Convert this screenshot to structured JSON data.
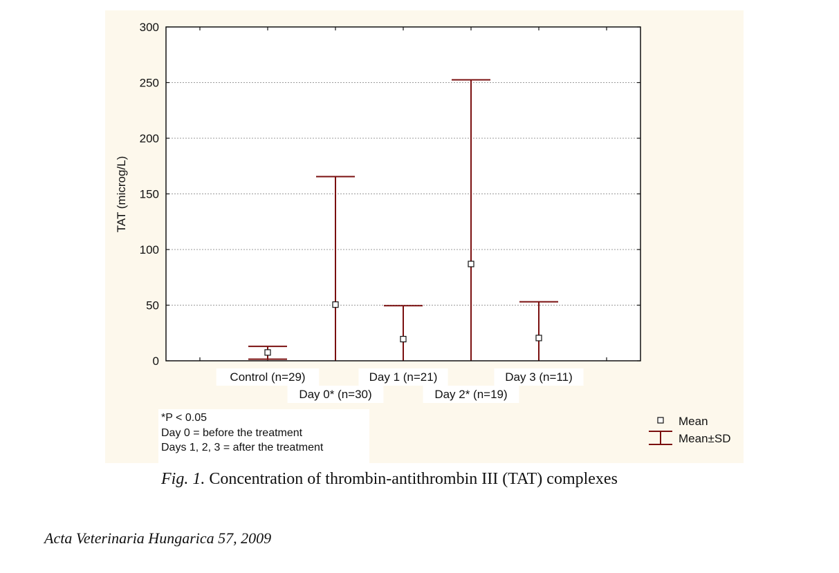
{
  "chart_data": {
    "type": "errorbar",
    "ylabel": "TAT (microg/L)",
    "ylim": [
      0,
      300
    ],
    "yticks": [
      0,
      50,
      100,
      150,
      200,
      250,
      300
    ],
    "grid": true,
    "categories": [
      "Control (n=29)",
      "Day 0* (n=30)",
      "Day 1 (n=21)",
      "Day 2* (n=19)",
      "Day 3 (n=11)"
    ],
    "mean": [
      7.5,
      50.5,
      19.5,
      87,
      20.5
    ],
    "sd_upper": [
      13,
      165.5,
      49.5,
      252.5,
      53
    ],
    "sd_lower": [
      1.5,
      0,
      0,
      0,
      0
    ],
    "legend": {
      "mean": "Mean",
      "sd": "Mean±SD",
      "position": "bottom-right"
    },
    "color": "#7a0f0f"
  },
  "notes": [
    "*P < 0.05",
    "Day 0 = before the treatment",
    "Days 1, 2, 3 = after the treatment"
  ],
  "caption": {
    "prefix": "Fig. 1.",
    "text": "Concentration of thrombin-antithrombin III (TAT) complexes"
  },
  "journal": "Acta Veterinaria Hungarica 57, 2009"
}
